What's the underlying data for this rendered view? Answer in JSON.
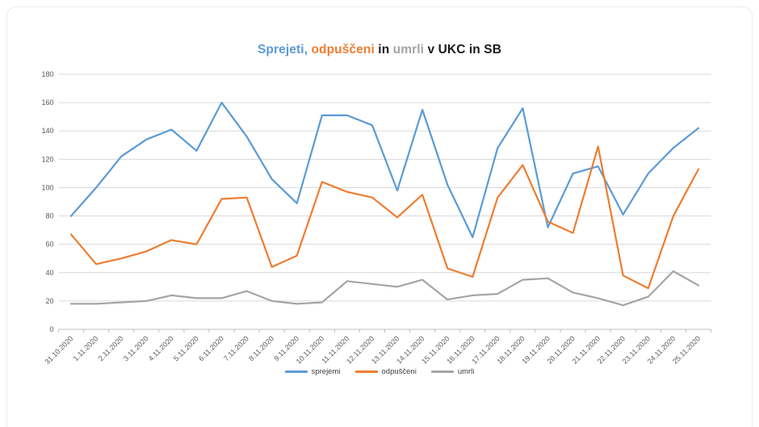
{
  "title": {
    "segments": [
      {
        "text": "Sprejeti,",
        "color": "#5B9BD5"
      },
      {
        "text": " odpuščeni",
        "color": "#ED7D31"
      },
      {
        "text": " in ",
        "color": "#1a1a1a"
      },
      {
        "text": "umrli",
        "color": "#A5A5A5"
      },
      {
        "text": " v UKC in SB",
        "color": "#1a1a1a"
      }
    ]
  },
  "chart_data": {
    "type": "line",
    "title": "Sprejeti, odpuščeni in umrli v UKC in SB",
    "xlabel": "",
    "ylabel": "",
    "ylim": [
      0,
      180
    ],
    "yticks": [
      0,
      20,
      40,
      60,
      80,
      100,
      120,
      140,
      160,
      180
    ],
    "grid": true,
    "legend_position": "bottom",
    "categories": [
      "31.10.2020",
      "1.11.2020",
      "2.11.2020",
      "3.11.2020",
      "4.11.2020",
      "5.11.2020",
      "6.11.2020",
      "7.11.2020",
      "8.11.2020",
      "9.11.2020",
      "10.11.2020",
      "11.11.2020",
      "12.11.2020",
      "13.11.2020",
      "14.11.2020",
      "15.11.2020",
      "16.11.2020",
      "17.11.2020",
      "18.11.2020",
      "19.11.2020",
      "20.11.2020",
      "21.11.2020",
      "22.11.2020",
      "23.11.2020",
      "24.11.2020",
      "25.11.2020"
    ],
    "series": [
      {
        "name": "sprejemi",
        "color": "#5B9BD5",
        "values": [
          80,
          100,
          122,
          134,
          141,
          126,
          160,
          136,
          106,
          89,
          151,
          151,
          144,
          98,
          155,
          102,
          65,
          128,
          156,
          72,
          110,
          115,
          81,
          110,
          128,
          142
        ]
      },
      {
        "name": "odpuščeni",
        "color": "#ED7D31",
        "values": [
          67,
          46,
          50,
          55,
          63,
          60,
          92,
          93,
          44,
          52,
          104,
          97,
          93,
          79,
          95,
          43,
          37,
          93,
          116,
          76,
          68,
          129,
          38,
          29,
          80,
          113
        ]
      },
      {
        "name": "umrli",
        "color": "#A5A5A5",
        "values": [
          18,
          18,
          19,
          20,
          24,
          22,
          22,
          27,
          20,
          18,
          19,
          34,
          32,
          30,
          35,
          21,
          24,
          25,
          35,
          36,
          26,
          22,
          17,
          23,
          41,
          31
        ]
      }
    ]
  },
  "colors": {
    "gridline": "#D9D9D9",
    "axis_line": "#BFBFBF",
    "tick_label": "#595959",
    "background": "#FFFFFF",
    "card_border": "#EBEBEB"
  }
}
